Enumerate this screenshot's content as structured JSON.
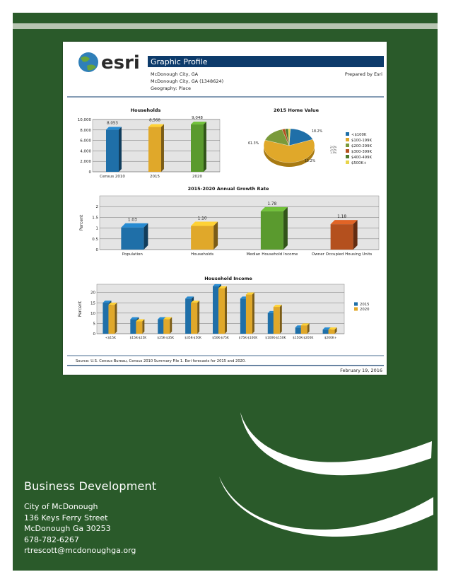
{
  "report": {
    "logo_text": "esri",
    "title": "Graphic Profile",
    "info_lines": [
      "McDonough City, GA",
      "McDonough City, GA (1348624)",
      "Geography: Place"
    ],
    "prepared_by": "Prepared by Esri",
    "source": "Source: U.S. Census Bureau, Census 2010 Summary File 1. Esri forecasts for 2015 and 2020.",
    "date": "February 19, 2016",
    "colors": {
      "blue": "#1f6fa8",
      "gold": "#e0a82a",
      "green": "#5a9a2e",
      "rust": "#b4501e",
      "title_bar": "#0d3b6b"
    }
  },
  "charts": [
    {
      "chart_data": {
        "type": "bar",
        "title": "Households",
        "categories": [
          "Census 2010",
          "2015",
          "2020"
        ],
        "values": [
          8053,
          8568,
          9048
        ],
        "value_labels": [
          "8,053",
          "8,568",
          "9,048"
        ],
        "ylim": [
          0,
          10000
        ],
        "yticks": [
          "0",
          "2,000",
          "4,000",
          "6,000",
          "8,000",
          "10,000"
        ],
        "colors": [
          "#1f6fa8",
          "#e0a82a",
          "#5a9a2e"
        ],
        "grid": true
      }
    },
    {
      "chart_data": {
        "type": "pie",
        "title": "2015 Home Value",
        "labels": [
          "<$100K",
          "$100-199K",
          "$200-299K",
          "$300-399K",
          "$400-499K",
          "$500K+"
        ],
        "values": [
          18.2,
          61.3,
          15.2,
          2.0,
          2.0,
          1.3
        ],
        "slice_labels": [
          "18.2%",
          "61.3%",
          "15.2%",
          "2.0%",
          "2.0%",
          "1.3%"
        ],
        "colors": [
          "#1f6fa8",
          "#e0a82a",
          "#7a9a3a",
          "#b4501e",
          "#4f7a2a",
          "#e8d44a"
        ],
        "legend": "right"
      }
    },
    {
      "chart_data": {
        "type": "bar",
        "title": "2015-2020 Annual Growth Rate",
        "ylabel": "Percent",
        "categories": [
          "Population",
          "Households",
          "Median Household Income",
          "Owner Occupied Housing Units"
        ],
        "values": [
          1.03,
          1.1,
          1.78,
          1.18
        ],
        "value_labels": [
          "1.03",
          "1.10",
          "1.78",
          "1.18"
        ],
        "ylim": [
          0,
          2.5
        ],
        "yticks": [
          "0",
          "0.5",
          "1",
          "1.5",
          "2"
        ],
        "colors": [
          "#1f6fa8",
          "#e0a82a",
          "#5a9a2e",
          "#b4501e"
        ],
        "grid": true
      }
    },
    {
      "chart_data": {
        "type": "bar",
        "title": "Household Income",
        "ylabel": "Percent",
        "categories": [
          "<$15K",
          "$15K-$25K",
          "$25K-$35K",
          "$35K-$50K",
          "$50K-$75K",
          "$75K-$100K",
          "$100K-$150K",
          "$150K-$200K",
          "$200K+"
        ],
        "series": [
          {
            "name": "2015",
            "values": [
              15,
              7,
              7,
              17,
              23,
              17,
              10,
              3,
              2
            ],
            "color": "#1f6fa8"
          },
          {
            "name": "2020",
            "values": [
              14,
              6,
              7,
              15,
              22,
              19,
              13,
              4,
              2
            ],
            "color": "#e0a82a"
          }
        ],
        "ylim": [
          0,
          24
        ],
        "yticks": [
          "0",
          "5",
          "10",
          "15",
          "20"
        ],
        "legend": "right",
        "grid": true
      }
    }
  ],
  "contact": {
    "heading": "Business Development",
    "lines": [
      "City of McDonough",
      "136 Keys Ferry Street",
      "McDonough Ga 30253",
      "678-782-6267",
      "rtrescott@mcdonoughga.org"
    ]
  }
}
